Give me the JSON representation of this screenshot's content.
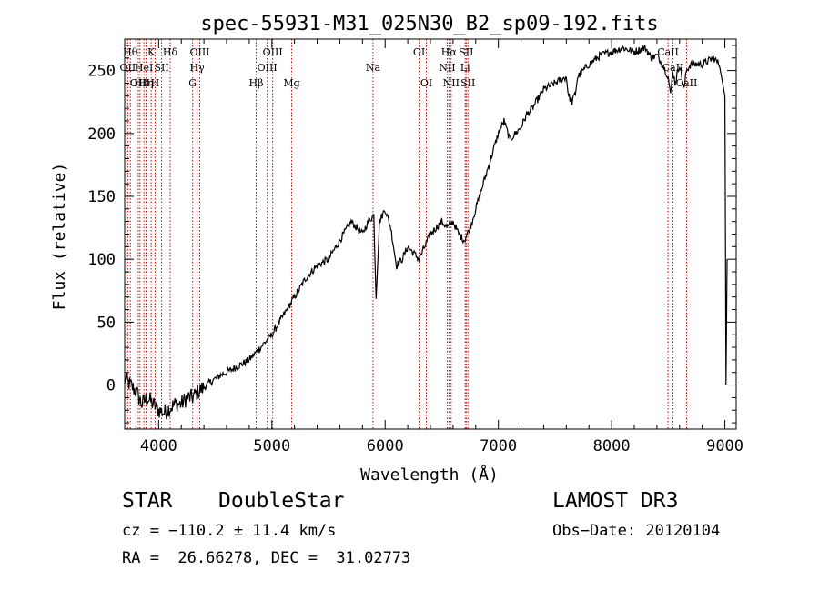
{
  "chart_data": {
    "type": "line",
    "title": "spec-55931-M31_025N30_B2_sp09-192.fits",
    "xlabel": "Wavelength (Å)",
    "ylabel": "Flux (relative)",
    "xlim": [
      3700,
      9100
    ],
    "ylim": [
      -35,
      275
    ],
    "x_ticks": [
      4000,
      5000,
      6000,
      7000,
      8000,
      9000
    ],
    "y_ticks": [
      0,
      50,
      100,
      150,
      200,
      250
    ],
    "grid": false,
    "series": [
      {
        "name": "flux",
        "x": [
          3700,
          3750,
          3800,
          3850,
          3900,
          3950,
          4000,
          4050,
          4100,
          4150,
          4200,
          4250,
          4300,
          4350,
          4400,
          4450,
          4500,
          4550,
          4600,
          4700,
          4800,
          4850,
          4900,
          5000,
          5100,
          5200,
          5300,
          5400,
          5500,
          5600,
          5700,
          5750,
          5800,
          5850,
          5900,
          5920,
          5950,
          6000,
          6050,
          6100,
          6150,
          6200,
          6250,
          6300,
          6350,
          6400,
          6450,
          6500,
          6550,
          6600,
          6650,
          6700,
          6750,
          6800,
          6850,
          6900,
          7000,
          7050,
          7100,
          7150,
          7200,
          7250,
          7300,
          7400,
          7500,
          7600,
          7620,
          7650,
          7680,
          7700,
          7750,
          7800,
          7900,
          8000,
          8100,
          8200,
          8300,
          8350,
          8400,
          8450,
          8500,
          8520,
          8540,
          8560,
          8600,
          8640,
          8660,
          8700,
          8800,
          8900,
          8950,
          8980,
          9000,
          9010,
          9020
        ],
        "y": [
          5,
          0,
          -5,
          -15,
          -10,
          -15,
          -20,
          -22,
          -18,
          -15,
          -15,
          -10,
          -10,
          -5,
          -2,
          2,
          5,
          8,
          10,
          15,
          20,
          25,
          30,
          40,
          55,
          70,
          85,
          95,
          100,
          115,
          130,
          125,
          120,
          130,
          135,
          70,
          130,
          140,
          125,
          95,
          100,
          110,
          105,
          100,
          110,
          120,
          125,
          130,
          125,
          130,
          120,
          115,
          125,
          140,
          155,
          170,
          200,
          210,
          195,
          200,
          205,
          215,
          220,
          235,
          240,
          245,
          230,
          225,
          232,
          245,
          250,
          255,
          262,
          265,
          268,
          265,
          268,
          260,
          262,
          255,
          245,
          230,
          250,
          240,
          255,
          235,
          250,
          255,
          255,
          260,
          255,
          240,
          230,
          0,
          100
        ]
      }
    ],
    "lines": [
      {
        "wavelength": 3727,
        "label": "OII",
        "row": 2
      },
      {
        "wavelength": 3750,
        "label": "Hθ",
        "row": 1
      },
      {
        "wavelength": 3820,
        "label": "H",
        "row": 3
      },
      {
        "wavelength": 3835,
        "label": "OIII",
        "row": 3
      },
      {
        "wavelength": 3870,
        "label": "HeI",
        "row": 2
      },
      {
        "wavelength": 3889,
        "label": "Hη",
        "row": 3
      },
      {
        "wavelength": 3934,
        "label": "K",
        "row": 1
      },
      {
        "wavelength": 3969,
        "label": "H",
        "row": 3
      },
      {
        "wavelength": 4026,
        "label": "SII",
        "row": 2
      },
      {
        "wavelength": 4102,
        "label": "Hδ",
        "row": 1
      },
      {
        "wavelength": 4300,
        "label": "G",
        "row": 3
      },
      {
        "wavelength": 4340,
        "label": "Hγ",
        "row": 2
      },
      {
        "wavelength": 4363,
        "label": "OIII",
        "row": 1
      },
      {
        "wavelength": 4861,
        "label": "Hβ",
        "row": 3
      },
      {
        "wavelength": 4959,
        "label": "OIII",
        "row": 2
      },
      {
        "wavelength": 5007,
        "label": "OIII",
        "row": 1
      },
      {
        "wavelength": 5175,
        "label": "Mg",
        "row": 3
      },
      {
        "wavelength": 5893,
        "label": "Na",
        "row": 2
      },
      {
        "wavelength": 6300,
        "label": "OI",
        "row": 1
      },
      {
        "wavelength": 6364,
        "label": "OI",
        "row": 3
      },
      {
        "wavelength": 6548,
        "label": "NII",
        "row": 2
      },
      {
        "wavelength": 6563,
        "label": "Hα",
        "row": 1
      },
      {
        "wavelength": 6583,
        "label": "NII",
        "row": 3
      },
      {
        "wavelength": 6707,
        "label": "Li",
        "row": 2
      },
      {
        "wavelength": 6716,
        "label": "SII",
        "row": 1
      },
      {
        "wavelength": 6731,
        "label": "SII",
        "row": 3
      },
      {
        "wavelength": 8498,
        "label": "CaII",
        "row": 1
      },
      {
        "wavelength": 8542,
        "label": "CaII",
        "row": 2
      },
      {
        "wavelength": 8662,
        "label": "CaII",
        "row": 3
      }
    ]
  },
  "info": {
    "class": "STAR",
    "subclass": "DoubleStar",
    "survey": "LAMOST DR3",
    "cz": "cz = −110.2 ± 11.4 km/s",
    "obs_date": "Obs−Date: 20120104",
    "coords": "RA =  26.66278, DEC =  31.02773"
  },
  "colors": {
    "spectrum": "#000000",
    "line_marker": "#cc0000",
    "axes": "#000000"
  }
}
